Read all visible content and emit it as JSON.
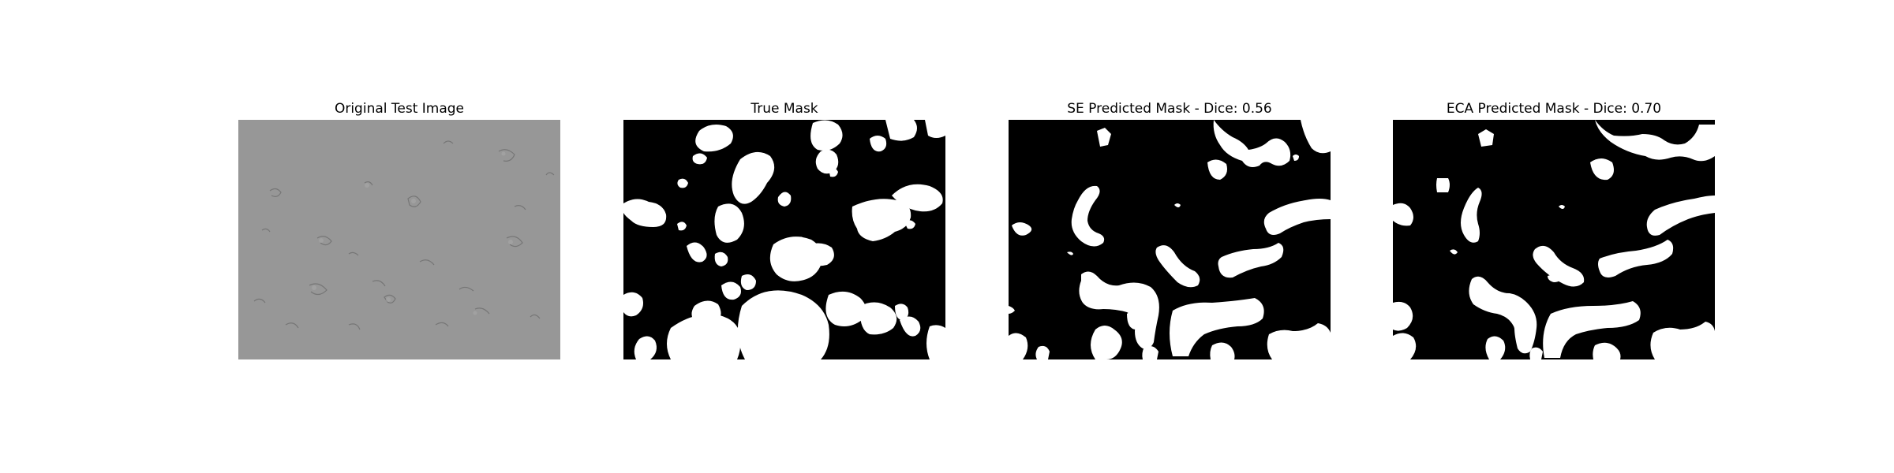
{
  "figure": {
    "panels": [
      {
        "title": "Original Test Image",
        "kind": "microscopy-image"
      },
      {
        "title": "True Mask",
        "kind": "mask"
      },
      {
        "title": "SE Predicted Mask - Dice: 0.56",
        "kind": "mask"
      },
      {
        "title": "ECA Predicted Mask - Dice: 0.70",
        "kind": "mask"
      }
    ]
  },
  "colors": {
    "background": "#ffffff",
    "mask_bg": "#000000",
    "mask_fg": "#ffffff",
    "micro_bg": "#979797"
  }
}
